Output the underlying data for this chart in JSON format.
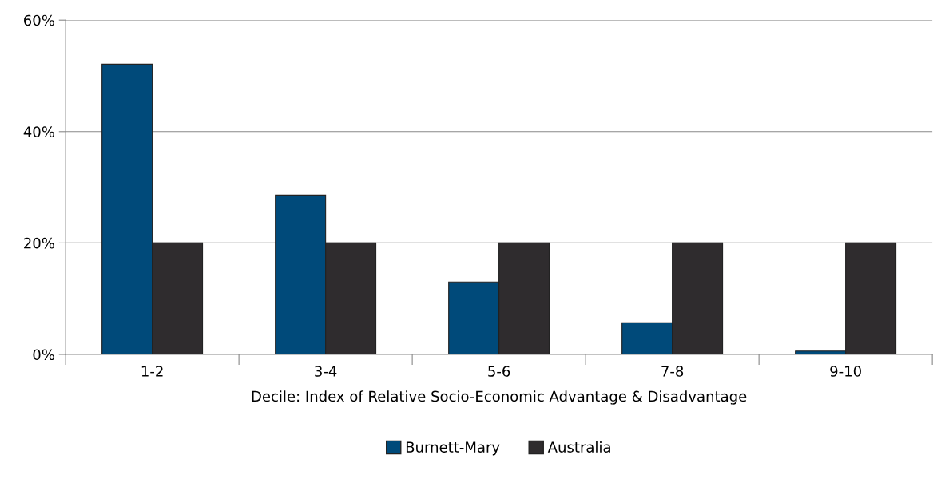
{
  "chart_data": {
    "type": "bar",
    "xlabel": "Decile: Index of Relative Socio-Economic Advantage & Disadvantage",
    "categories": [
      "1-2",
      "3-4",
      "5-6",
      "7-8",
      "9-10"
    ],
    "series": [
      {
        "name": "Burnett-Mary",
        "color": "#004a7a",
        "values": [
          52.1,
          28.6,
          13.0,
          5.7,
          0.6
        ]
      },
      {
        "name": "Australia",
        "color": "#2f2c2e",
        "values": [
          20,
          20,
          20,
          20,
          20
        ]
      }
    ],
    "ylim": [
      0,
      60
    ],
    "yticks": [
      {
        "value": 0,
        "label": "0%"
      },
      {
        "value": 20,
        "label": "20%"
      },
      {
        "value": 40,
        "label": "40%"
      },
      {
        "value": 60,
        "label": "60%"
      }
    ],
    "grid": "y",
    "legend": "bottom"
  }
}
